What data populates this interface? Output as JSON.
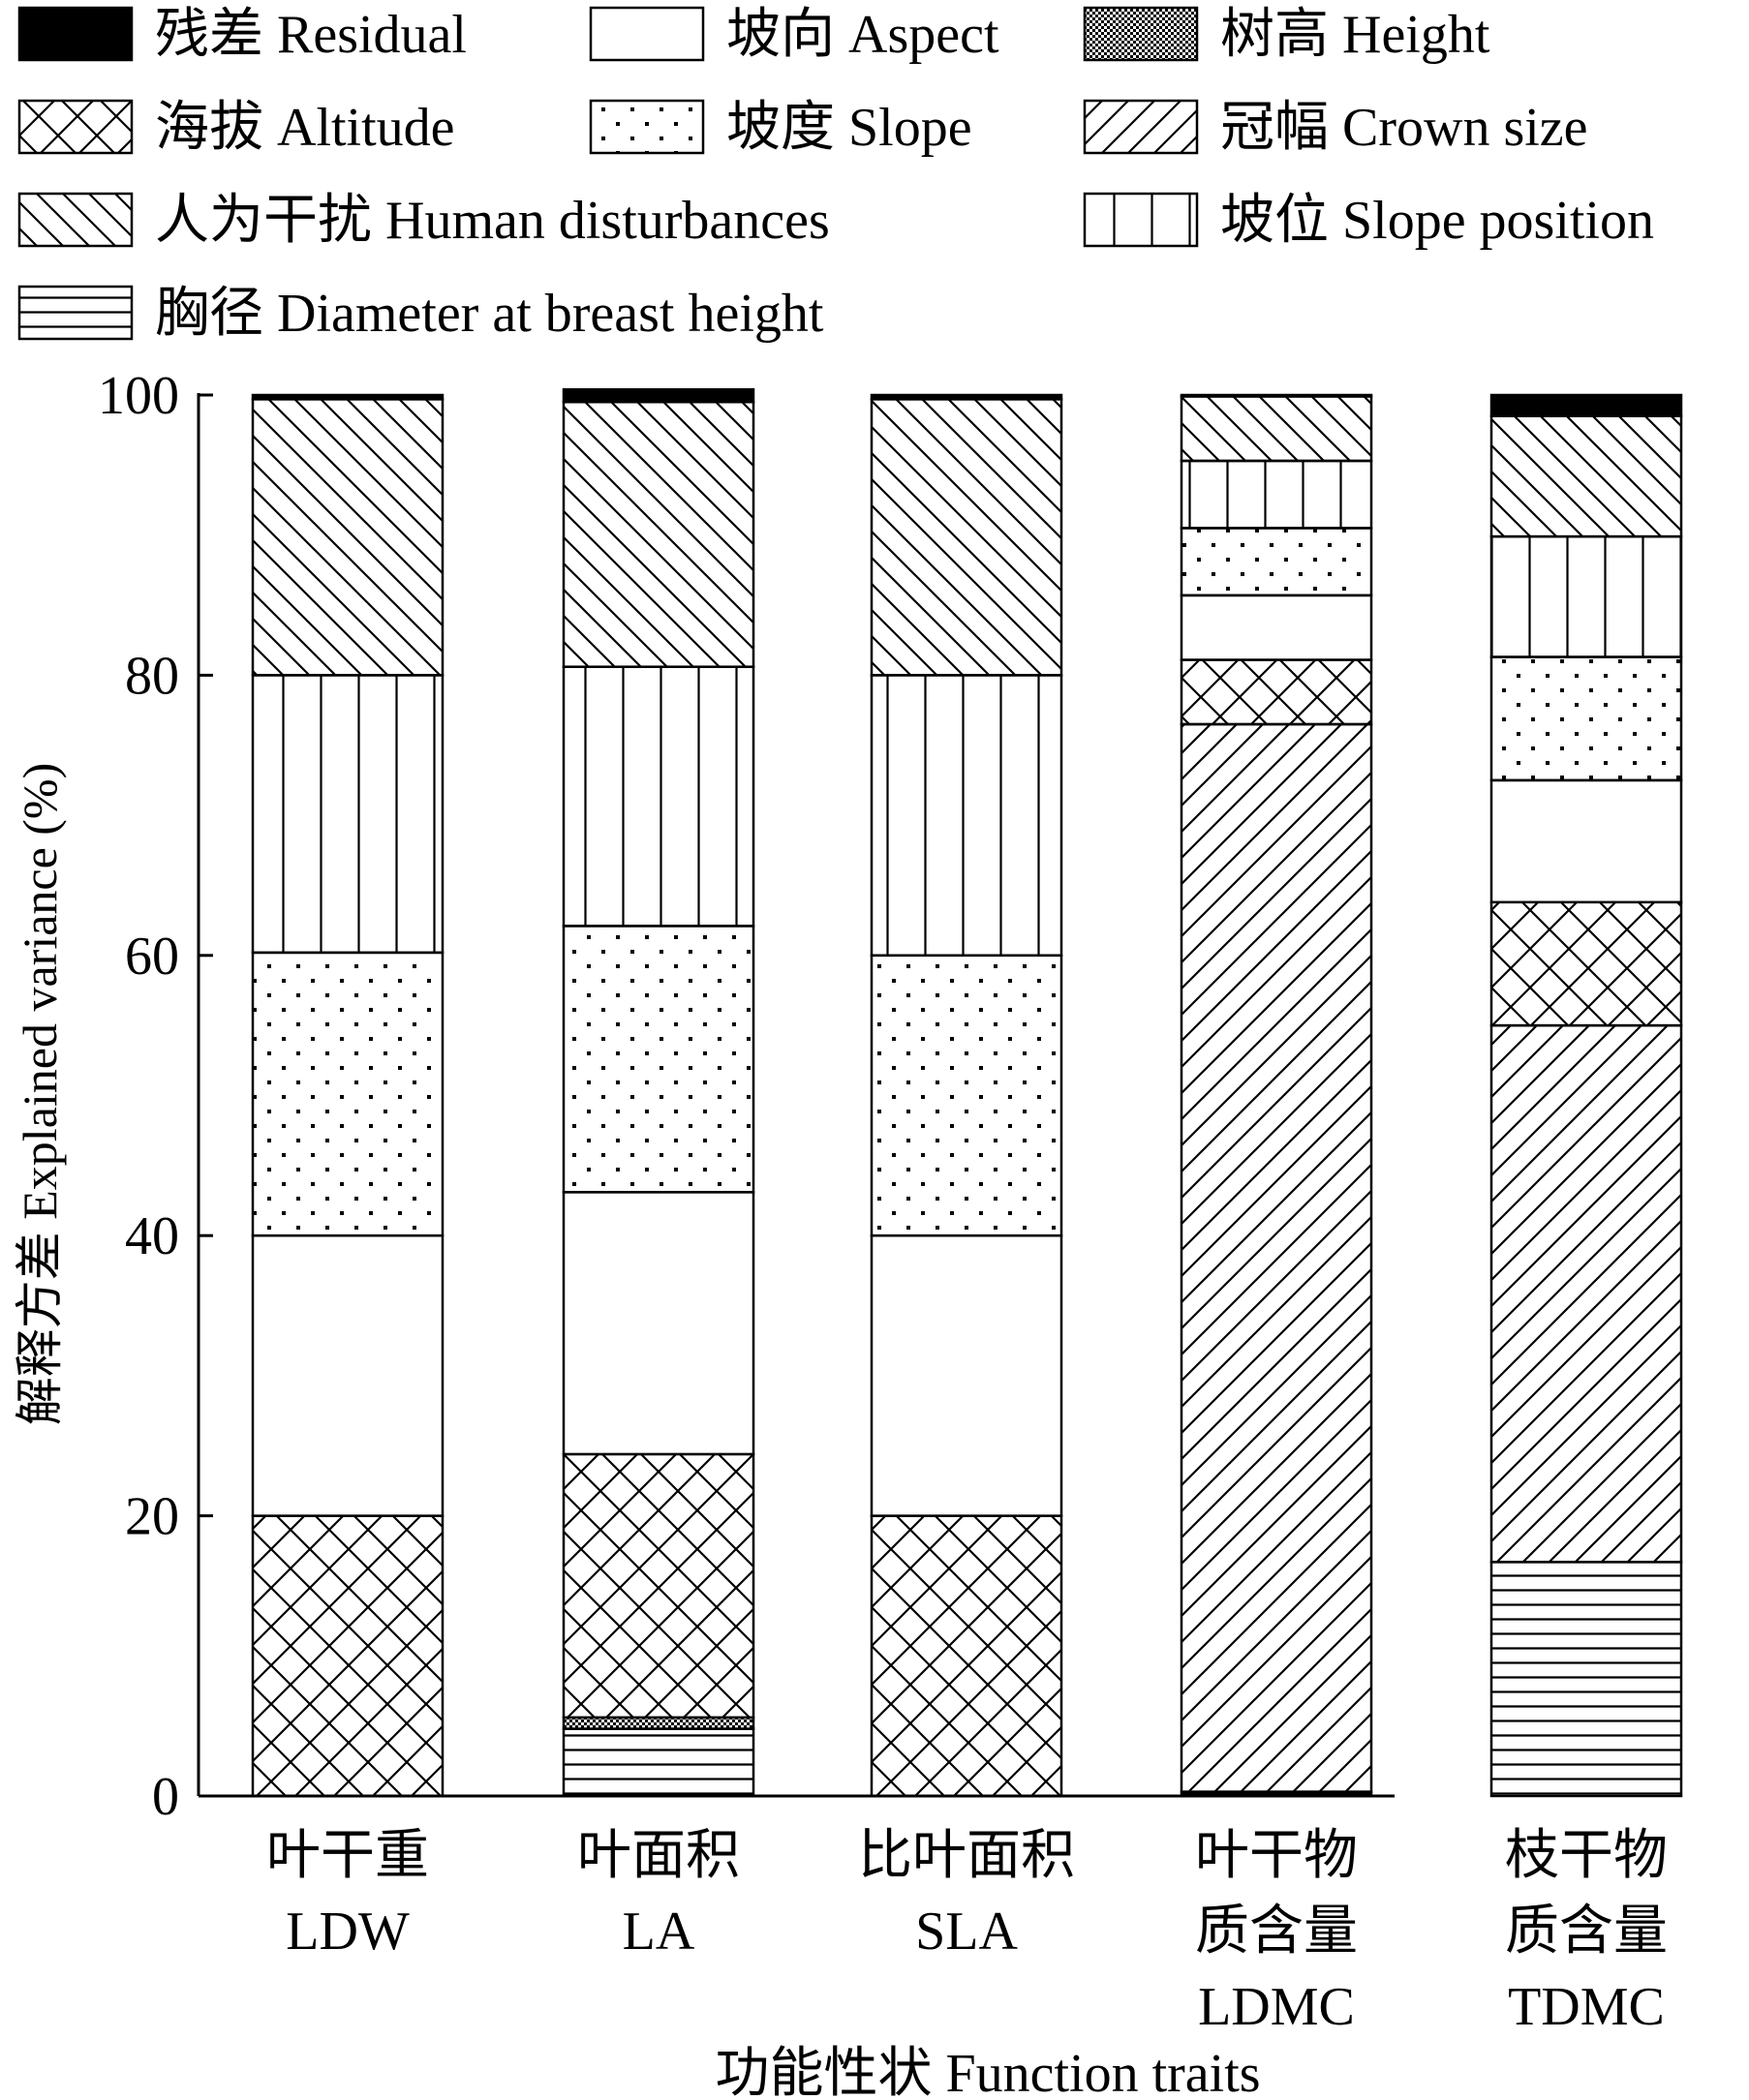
{
  "chart_data": {
    "type": "bar",
    "stacked": true,
    "title": "",
    "ylabel": "解释方差 Explained variance (%)",
    "xlabel": "功能性状 Function traits",
    "ylim": [
      0,
      100
    ],
    "yticks": [
      0,
      20,
      40,
      60,
      80,
      100
    ],
    "grid": false,
    "legend_position": "top",
    "categories": [
      [
        "叶干重",
        "LDW"
      ],
      [
        "叶面积",
        "LA"
      ],
      [
        "比叶面积",
        "SLA"
      ],
      [
        "叶干物",
        "质含量",
        "LDMC"
      ],
      [
        "枝干物",
        "质含量",
        "TDMC"
      ]
    ],
    "stack_order": [
      "dbh",
      "height",
      "crown",
      "altitude",
      "aspect",
      "slope",
      "slopepos",
      "human",
      "residual"
    ],
    "series": {
      "residual": {
        "name": "残差 Residual",
        "pattern": "solid",
        "values": [
          0.3,
          0.9,
          0.3,
          0.1,
          1.5
        ]
      },
      "aspect": {
        "name": "坡向 Aspect",
        "pattern": "blank",
        "values": [
          20.0,
          18.7,
          20.0,
          4.6,
          8.7
        ]
      },
      "height": {
        "name": "树高 Height",
        "pattern": "fine",
        "values": [
          0,
          0.8,
          0,
          0,
          0
        ]
      },
      "altitude": {
        "name": "海拔 Altitude",
        "pattern": "cross",
        "values": [
          20.0,
          18.8,
          20.0,
          4.6,
          8.8
        ]
      },
      "slope": {
        "name": "坡度 Slope",
        "pattern": "dots",
        "values": [
          20.2,
          19.0,
          20.0,
          4.8,
          8.8
        ]
      },
      "crown": {
        "name": "冠幅 Crown size",
        "pattern": "diagfwd",
        "values": [
          0,
          0,
          0,
          76.2,
          38.3
        ]
      },
      "human": {
        "name": "人为干扰 Human disturbances",
        "pattern": "diagback",
        "values": [
          19.7,
          18.9,
          19.7,
          4.6,
          8.6
        ]
      },
      "slopepos": {
        "name": "坡位 Slope position",
        "pattern": "vert",
        "values": [
          19.8,
          18.5,
          20.0,
          4.8,
          8.6
        ]
      },
      "dbh": {
        "name": "胸径 Diameter at breast height",
        "pattern": "horiz",
        "values": [
          0,
          4.8,
          0,
          0.3,
          16.7
        ]
      }
    },
    "legend_order": [
      "residual",
      "aspect",
      "height",
      "altitude",
      "slope",
      "crown",
      "human",
      "slopepos",
      "dbh"
    ]
  }
}
